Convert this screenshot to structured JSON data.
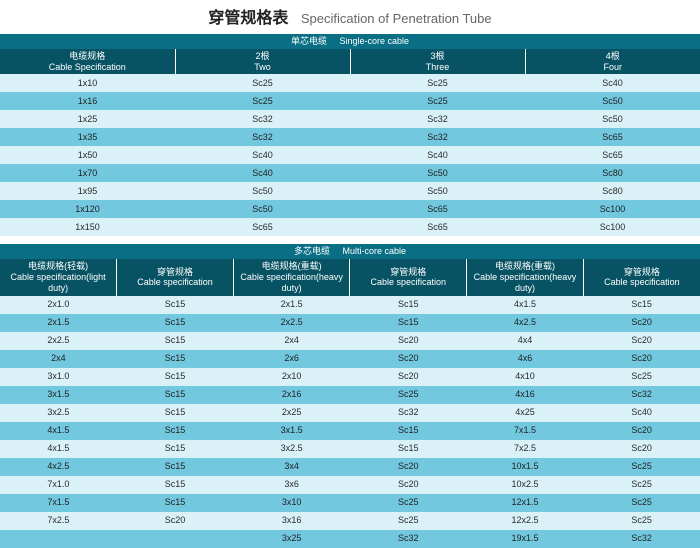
{
  "title": {
    "cn": "穿管规格表",
    "en": "Specification of Penetration Tube"
  },
  "table1": {
    "band": {
      "cn": "单芯电缆",
      "en": "Single-core cable"
    },
    "headers": [
      {
        "cn": "电缆规格",
        "en": "Cable Specification"
      },
      {
        "cn": "2根",
        "en": "Two"
      },
      {
        "cn": "3根",
        "en": "Three"
      },
      {
        "cn": "4根",
        "en": "Four"
      }
    ],
    "rows": [
      [
        "1x10",
        "Sc25",
        "Sc25",
        "Sc40"
      ],
      [
        "1x16",
        "Sc25",
        "Sc25",
        "Sc50"
      ],
      [
        "1x25",
        "Sc32",
        "Sc32",
        "Sc50"
      ],
      [
        "1x35",
        "Sc32",
        "Sc32",
        "Sc65"
      ],
      [
        "1x50",
        "Sc40",
        "Sc40",
        "Sc65"
      ],
      [
        "1x70",
        "Sc40",
        "Sc50",
        "Sc80"
      ],
      [
        "1x95",
        "Sc50",
        "Sc50",
        "Sc80"
      ],
      [
        "1x120",
        "Sc50",
        "Sc65",
        "Sc100"
      ],
      [
        "1x150",
        "Sc65",
        "Sc65",
        "Sc100"
      ]
    ]
  },
  "table2": {
    "band": {
      "cn": "多芯电缆",
      "en": "Multi-core cable"
    },
    "headers": [
      {
        "cn": "电缆规格(轻载)",
        "en": "Cable specification(light duty)"
      },
      {
        "cn": "穿管规格",
        "en": "Cable specification"
      },
      {
        "cn": "电缆规格(重载)",
        "en": "Cable specification(heavy duty)"
      },
      {
        "cn": "穿管规格",
        "en": "Cable specification"
      },
      {
        "cn": "电缆规格(重载)",
        "en": "Cable specification(heavy duty)"
      },
      {
        "cn": "穿管规格",
        "en": "Cable specification"
      }
    ],
    "rows": [
      [
        "2x1.0",
        "Sc15",
        "2x1.5",
        "Sc15",
        "4x1.5",
        "Sc15"
      ],
      [
        "2x1.5",
        "Sc15",
        "2x2.5",
        "Sc15",
        "4x2.5",
        "Sc20"
      ],
      [
        "2x2.5",
        "Sc15",
        "2x4",
        "Sc20",
        "4x4",
        "Sc20"
      ],
      [
        "2x4",
        "Sc15",
        "2x6",
        "Sc20",
        "4x6",
        "Sc20"
      ],
      [
        "3x1.0",
        "Sc15",
        "2x10",
        "Sc20",
        "4x10",
        "Sc25"
      ],
      [
        "3x1.5",
        "Sc15",
        "2x16",
        "Sc25",
        "4x16",
        "Sc32"
      ],
      [
        "3x2.5",
        "Sc15",
        "2x25",
        "Sc32",
        "4x25",
        "Sc40"
      ],
      [
        "4x1.5",
        "Sc15",
        "3x1.5",
        "Sc15",
        "7x1.5",
        "Sc20"
      ],
      [
        "4x1.5",
        "Sc15",
        "3x2.5",
        "Sc15",
        "7x2.5",
        "Sc20"
      ],
      [
        "4x2.5",
        "Sc15",
        "3x4",
        "Sc20",
        "10x1.5",
        "Sc25"
      ],
      [
        "7x1.0",
        "Sc15",
        "3x6",
        "Sc20",
        "10x2.5",
        "Sc25"
      ],
      [
        "7x1.5",
        "Sc15",
        "3x10",
        "Sc25",
        "12x1.5",
        "Sc25"
      ],
      [
        "7x2.5",
        "Sc20",
        "3x16",
        "Sc25",
        "12x2.5",
        "Sc25"
      ],
      [
        "",
        "",
        "3x25",
        "Sc32",
        "19x1.5",
        "Sc32"
      ]
    ]
  },
  "colors": {
    "band": "#0a6f84",
    "header": "#075364",
    "rowLight": "#daf2f7",
    "rowDark": "#72c8df"
  }
}
